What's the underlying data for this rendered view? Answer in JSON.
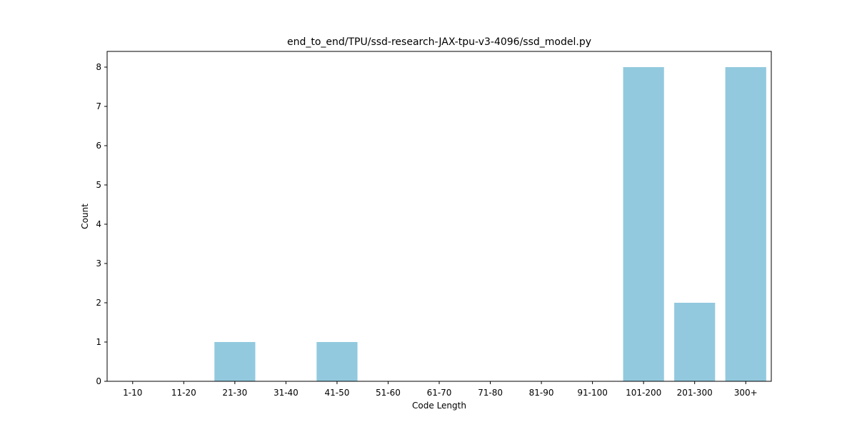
{
  "chart_data": {
    "type": "bar",
    "title": "end_to_end/TPU/ssd-research-JAX-tpu-v3-4096/ssd_model.py",
    "xlabel": "Code Length",
    "ylabel": "Count",
    "categories": [
      "1-10",
      "11-20",
      "21-30",
      "31-40",
      "41-50",
      "51-60",
      "61-70",
      "71-80",
      "81-90",
      "91-100",
      "101-200",
      "201-300",
      "300+"
    ],
    "values": [
      0,
      0,
      1,
      0,
      1,
      0,
      0,
      0,
      0,
      0,
      8,
      2,
      8
    ],
    "ylim": [
      0,
      8.4
    ],
    "yticks": [
      0,
      1,
      2,
      3,
      4,
      5,
      6,
      7,
      8
    ],
    "bar_color": "#92c9de",
    "grid": false,
    "legend": "none"
  }
}
